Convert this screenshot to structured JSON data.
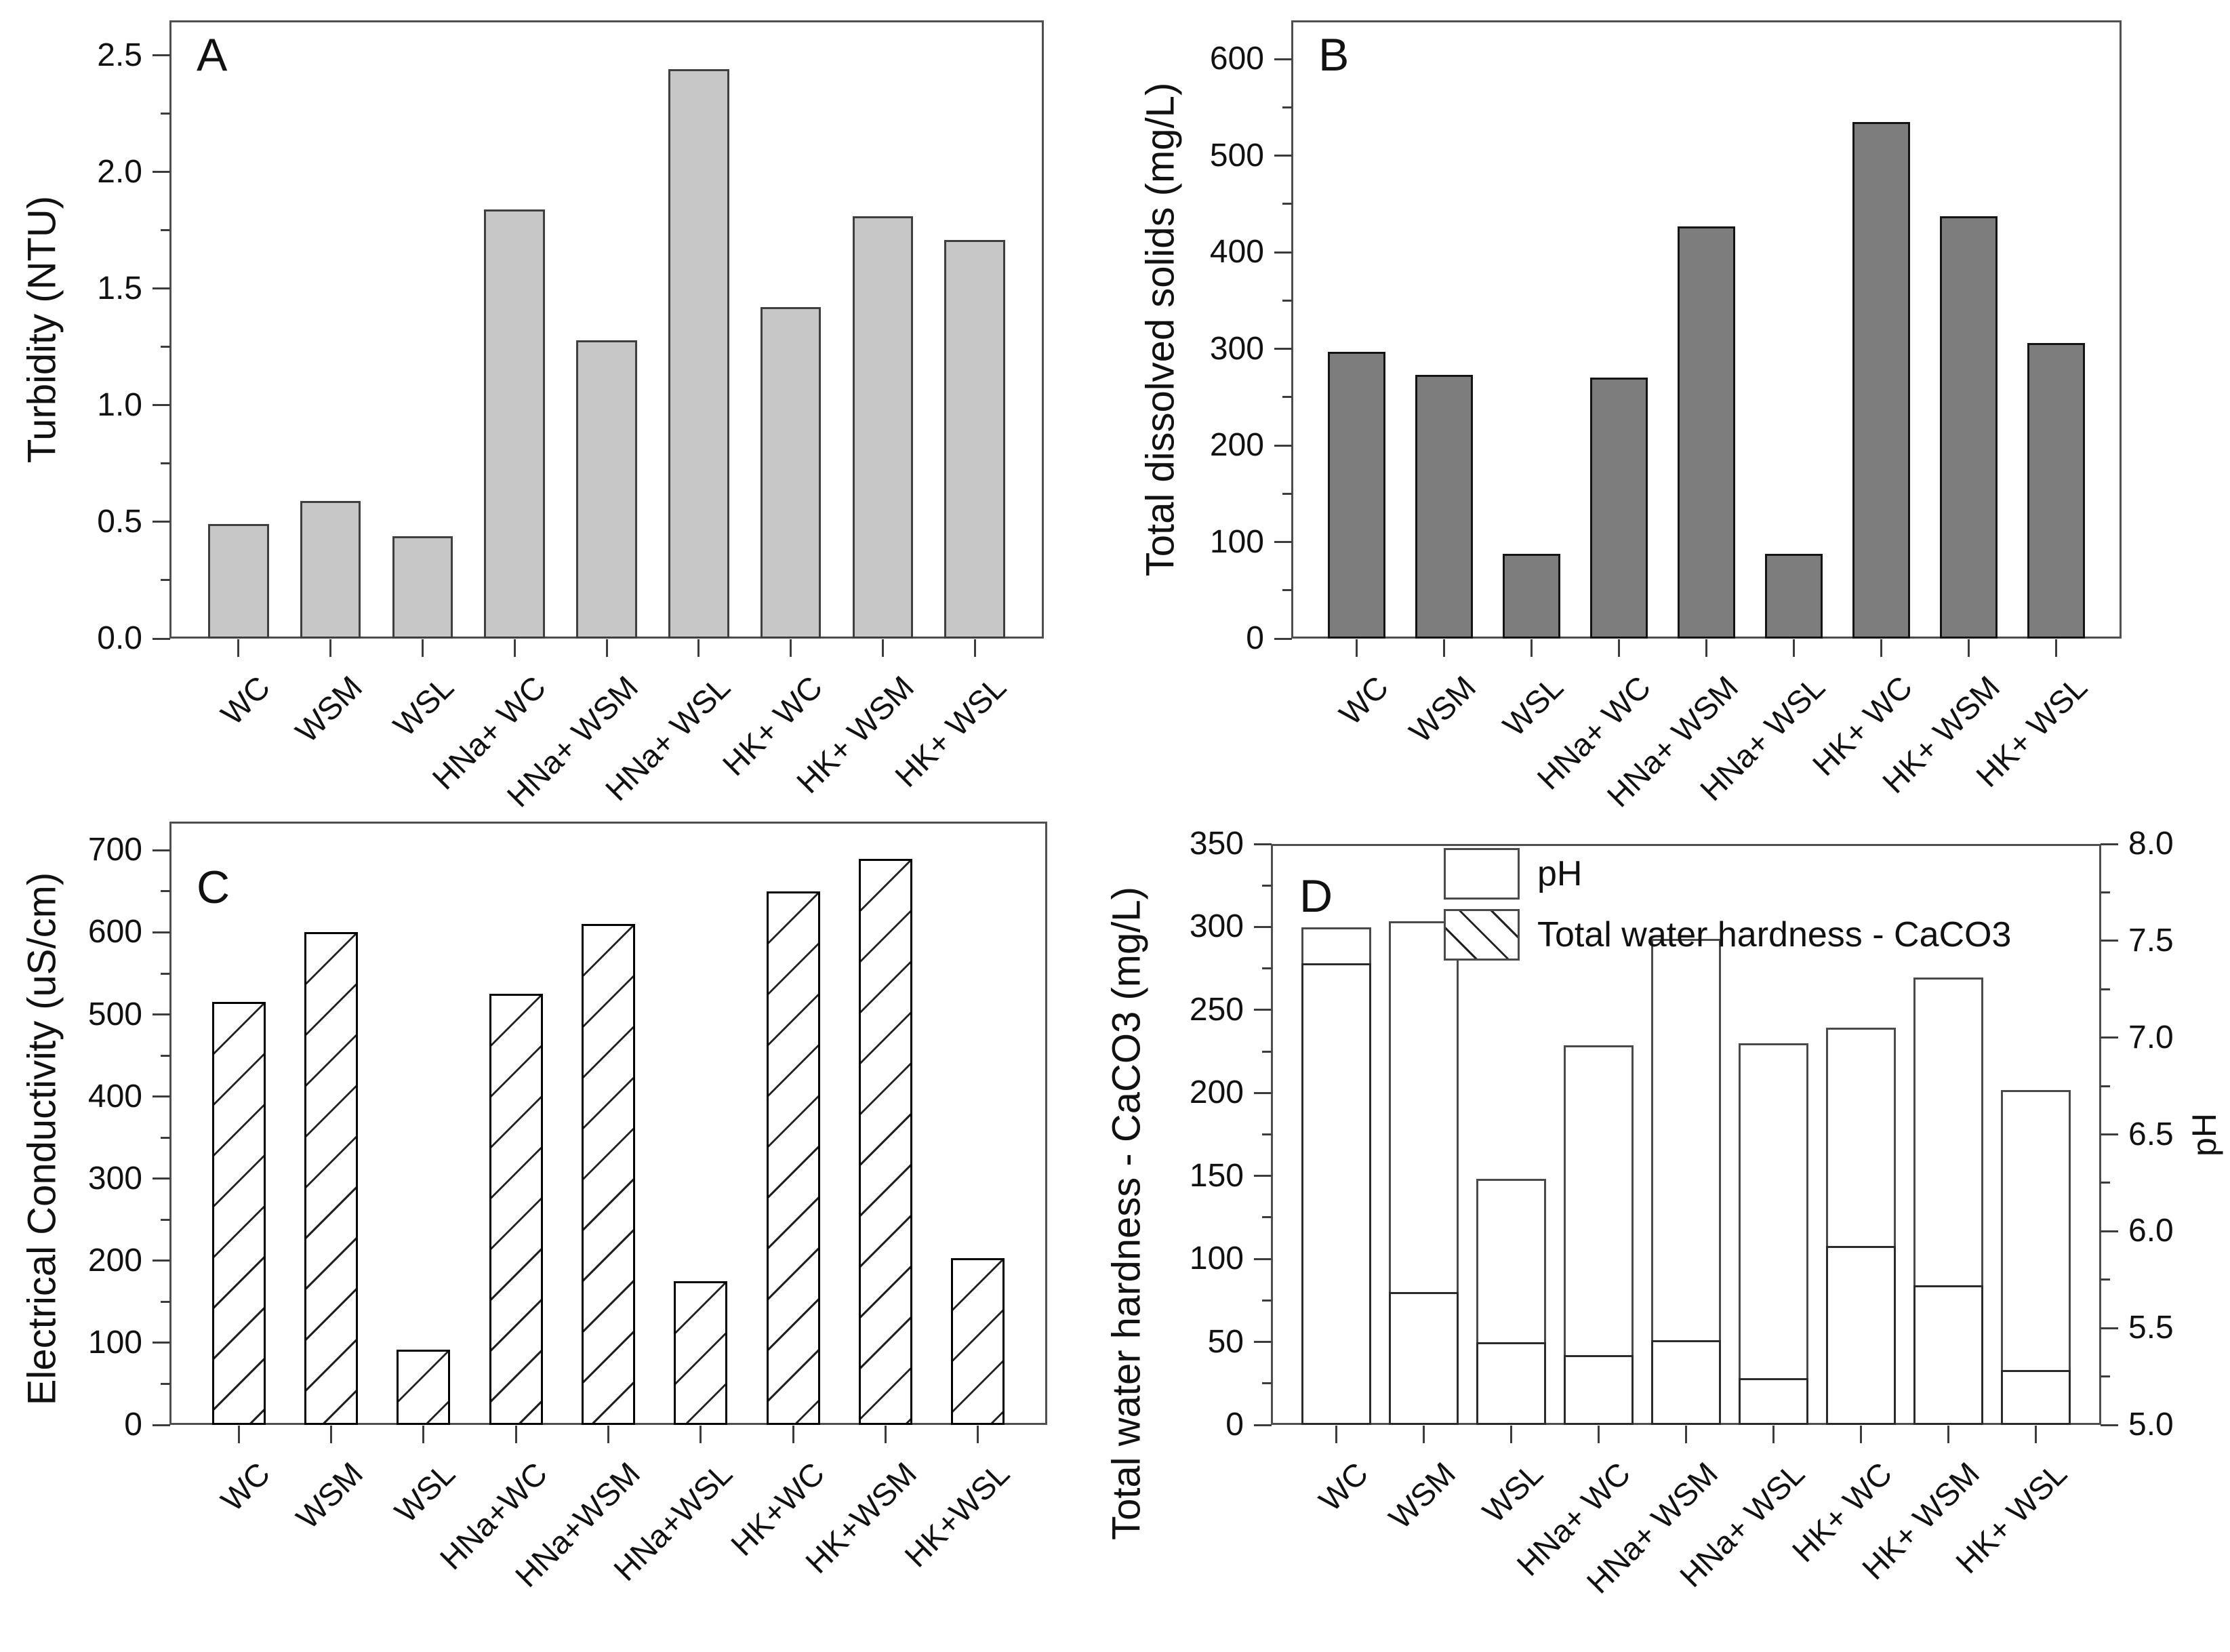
{
  "figure": {
    "background": "#ffffff",
    "axis_color": "#4f4f4f"
  },
  "chart_data": [
    {
      "id": "A",
      "type": "bar",
      "panel_letter": "A",
      "ylabel": "Turbidity (NTU)",
      "ylim": [
        0,
        2.5
      ],
      "axis_top": 2.65,
      "ytick_step": 0.5,
      "minor_tick_step": 0.25,
      "ytick_labels": [
        "0.0",
        "0.5",
        "1.0",
        "1.5",
        "2.0",
        "2.5"
      ],
      "categories": [
        "WC",
        "WSM",
        "WSL",
        "HNa+ WC",
        "HNa+ WSM",
        "HNa+ WSL",
        "HK+ WC",
        "HK+ WSM",
        "HK+ WSL"
      ],
      "values": [
        0.49,
        0.59,
        0.44,
        1.84,
        1.28,
        2.44,
        1.42,
        1.81,
        1.71
      ],
      "bar_fill": "#c7c7c7",
      "bar_border": "#3f3f3f",
      "hatch": null,
      "legend_position": "none",
      "grid": false
    },
    {
      "id": "B",
      "type": "bar",
      "panel_letter": "B",
      "ylabel": "Total dissolved solids (mg/L)",
      "ylim": [
        0,
        600
      ],
      "axis_top": 640,
      "ytick_step": 100,
      "minor_tick_step": 50,
      "ytick_labels": [
        "0",
        "100",
        "200",
        "300",
        "400",
        "500",
        "600"
      ],
      "categories": [
        "WC",
        "WSM",
        "WSL",
        "HNa+ WC",
        "HNa+ WSM",
        "HNa+ WSL",
        "HK+ WC",
        "HK+ WSM",
        "HK+ WSL"
      ],
      "values": [
        297,
        273,
        88,
        270,
        427,
        88,
        535,
        437,
        306
      ],
      "bar_fill": "#7d7d7d",
      "bar_border": "#141414",
      "hatch": null,
      "legend_position": "none",
      "grid": false
    },
    {
      "id": "C",
      "type": "bar",
      "panel_letter": "C",
      "ylabel": "Electrical Conductivity (uS/cm)",
      "ylim": [
        0,
        700
      ],
      "axis_top": 735,
      "ytick_step": 100,
      "minor_tick_step": 50,
      "ytick_labels": [
        "0",
        "100",
        "200",
        "300",
        "400",
        "500",
        "600",
        "700"
      ],
      "categories": [
        "WC",
        "WSM",
        "WSL",
        "HNa+WC",
        "HNa+WSM",
        "HNa+WSL",
        "HK+WC",
        "HK+WSM",
        "HK+WSL"
      ],
      "values": [
        515,
        600,
        92,
        525,
        610,
        175,
        650,
        690,
        203
      ],
      "bar_fill": "#ffffff",
      "bar_border": "#000000",
      "hatch": "forward",
      "legend_position": "none",
      "grid": false
    },
    {
      "id": "D",
      "type": "bar",
      "panel_letter": "D",
      "ylabel": "Total water hardness - CaCO3 (mg/L)",
      "ylabel_right": "pH",
      "ylim_left": [
        0,
        350
      ],
      "ylim_right": [
        5.0,
        8.0
      ],
      "ytick_step": 50,
      "minor_tick_step": 25,
      "ytick_labels": [
        "0",
        "50",
        "100",
        "150",
        "200",
        "250",
        "300",
        "350"
      ],
      "right_tick_step": 0.5,
      "right_minor_tick_step": 0.25,
      "right_tick_labels": [
        "5.0",
        "5.5",
        "6.0",
        "6.5",
        "7.0",
        "7.5",
        "8.0"
      ],
      "categories": [
        "WC",
        "WSM",
        "WSL",
        "HNa+ WC",
        "HNa+ WSM",
        "HNa+ WSL",
        "HK+ WC",
        "HK+ WSM",
        "HK+ WSL"
      ],
      "series": [
        {
          "name": "pH",
          "axis": "right",
          "values": [
            7.57,
            7.6,
            6.27,
            6.96,
            7.51,
            6.97,
            7.05,
            7.31,
            6.73
          ],
          "bar_fill": "#ffffff",
          "bar_border": "#4a4a4a",
          "hatch": null
        },
        {
          "name": "Total water hardness - CaCO3",
          "axis": "left",
          "values": [
            278,
            80,
            50,
            42,
            51,
            28,
            108,
            84,
            33
          ],
          "bar_fill": "#ffffff",
          "bar_border": "#2b2b2b",
          "hatch": "back"
        }
      ],
      "legend": {
        "entries": [
          "pH",
          "Total water hardness - CaCO3"
        ],
        "position": "top-left-inside"
      },
      "grid": false
    }
  ]
}
